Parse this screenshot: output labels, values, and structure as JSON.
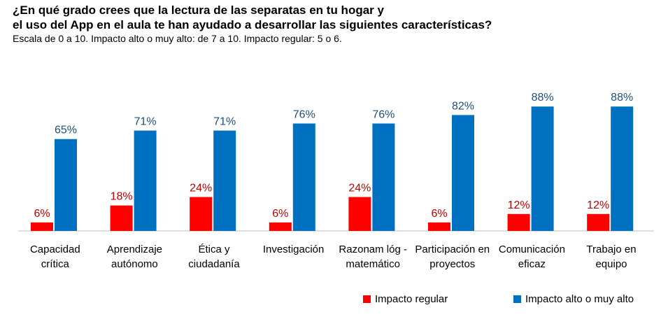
{
  "title_line1": "¿En qué grado crees que la lectura de las separatas en tu hogar y",
  "title_line2": "el uso del App en el aula te han ayudado a desarrollar las siguientes características?",
  "subtitle": "Escala de 0 a 10. Impacto alto o muy alto: de 7 a 10. Impacto regular: 5 o 6.",
  "colors": {
    "regular": "#ff0000",
    "alto": "#0070c0",
    "label_regular": "#c00000",
    "label_alto": "#1f4e79",
    "axis": "#bfbfbf"
  },
  "chart_data": {
    "type": "bar",
    "title": "¿En qué grado crees que la lectura de las separatas en tu hogar y el uso del App en el aula te han ayudado a desarrollar las siguientes características?",
    "subtitle": "Escala de 0 a 10. Impacto alto o muy alto: de 7 a 10. Impacto regular: 5 o 6.",
    "categories": [
      [
        "Capacidad",
        "crítica"
      ],
      [
        "Aprendizaje",
        "autónomo"
      ],
      [
        "Ética y",
        "ciudadanía"
      ],
      [
        "Investigación"
      ],
      [
        "Razonam lóg -",
        "matemático"
      ],
      [
        "Participación en",
        "proyectos"
      ],
      [
        "Comunicación",
        "eficaz"
      ],
      [
        "Trabajo en",
        "equipo"
      ]
    ],
    "series": [
      {
        "name": "Impacto regular",
        "values": [
          6,
          18,
          24,
          6,
          24,
          6,
          12,
          12
        ],
        "labels": [
          "6%",
          "18%",
          "24%",
          "6%",
          "24%",
          "6%",
          "12%",
          "12%"
        ]
      },
      {
        "name": "Impacto alto o muy alto",
        "values": [
          65,
          71,
          71,
          76,
          76,
          82,
          88,
          88
        ],
        "labels": [
          "65%",
          "71%",
          "71%",
          "76%",
          "76%",
          "82%",
          "88%",
          "88%"
        ]
      }
    ],
    "ylim": [
      0,
      100
    ],
    "grid": false,
    "legend": "bottom-right"
  }
}
